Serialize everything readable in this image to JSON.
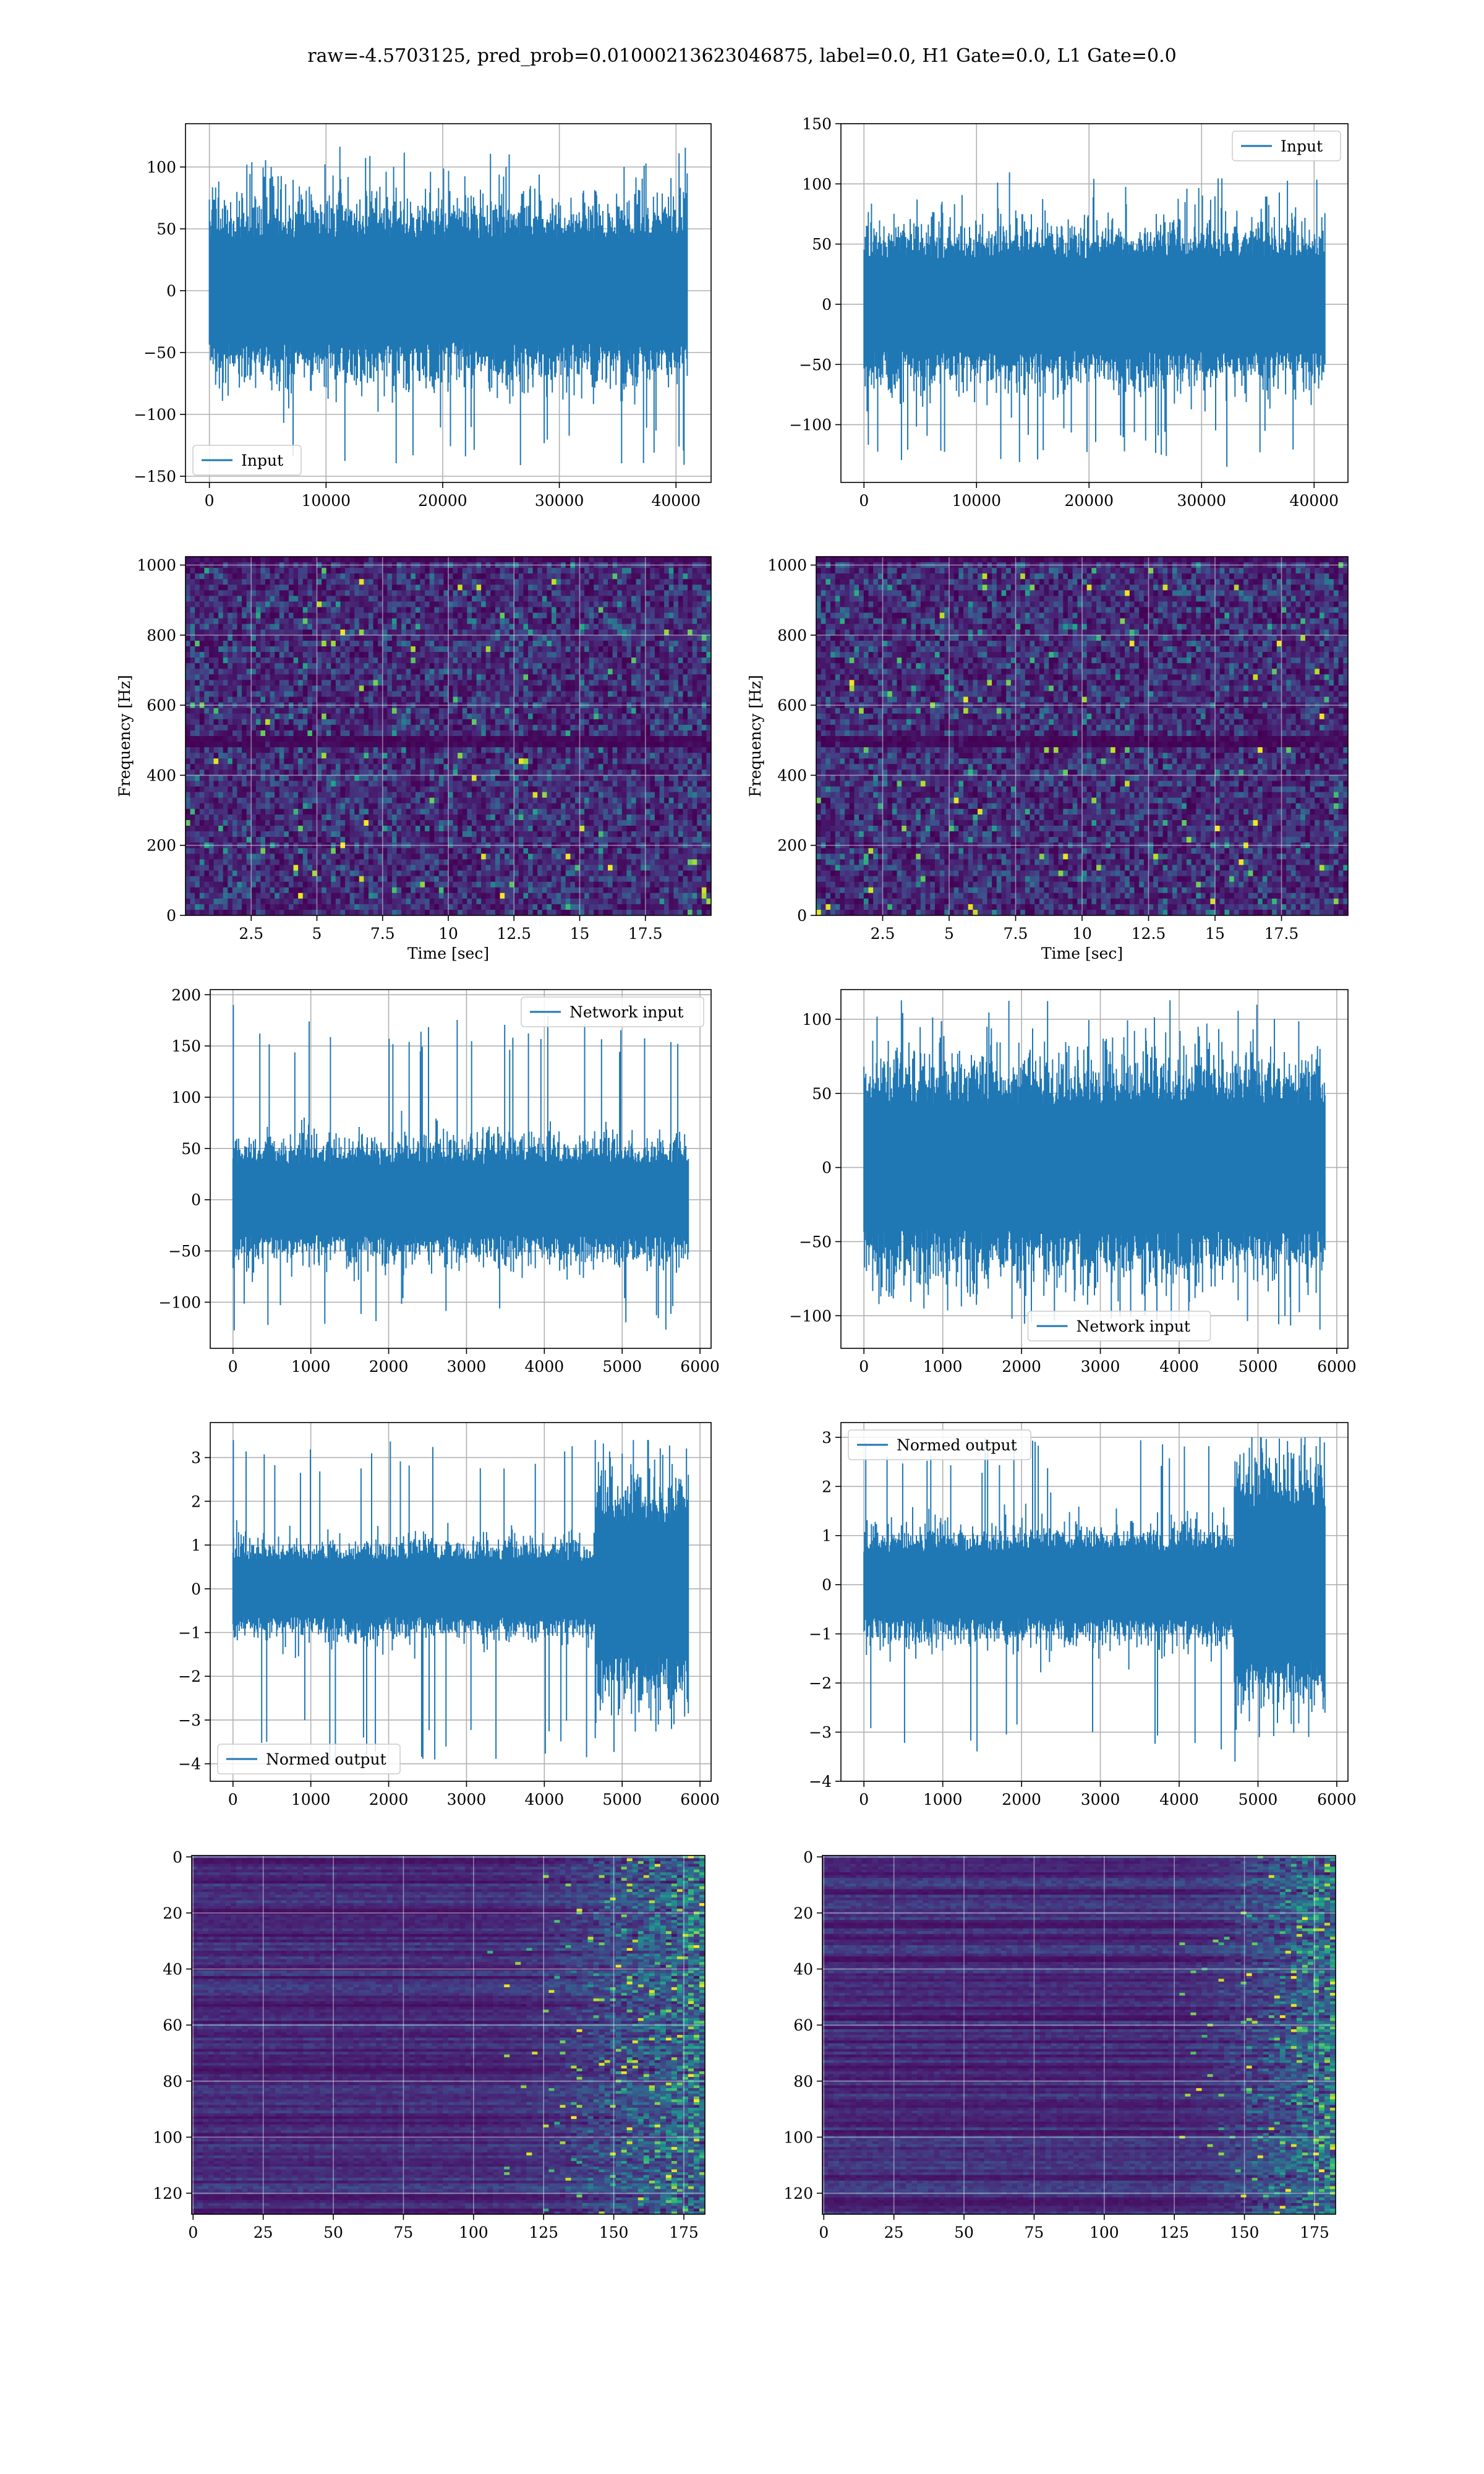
{
  "title": "raw=-4.5703125, pred_prob=0.01000213623046875, label=0.0, H1 Gate=0.0, L1 Gate=0.0",
  "colors": {
    "series": "#1f77b4",
    "grid": "#b0b0b0",
    "spine": "#000000",
    "cmap": [
      "#440154",
      "#482475",
      "#414487",
      "#355f8d",
      "#2a788e",
      "#21918c",
      "#22a884",
      "#44bf70",
      "#7ad151",
      "#bddf26",
      "#fde725"
    ]
  },
  "chart_data": [
    {
      "id": "input-h1",
      "type": "line",
      "series": [
        {
          "name": "Input",
          "kind": "noise",
          "n": 40960,
          "mean": 0,
          "std": 22,
          "peak_max": 118,
          "peak_min": -142
        }
      ],
      "xlim": [
        -2048,
        43008
      ],
      "ylim": [
        -155,
        135
      ],
      "xticks": [
        0,
        10000,
        20000,
        30000,
        40000
      ],
      "yticks": [
        -150,
        -100,
        -50,
        0,
        50,
        100
      ],
      "legend": "lower-left",
      "grid": true,
      "xlabel": "",
      "ylabel": ""
    },
    {
      "id": "input-l1",
      "type": "line",
      "series": [
        {
          "name": "Input",
          "kind": "noise",
          "n": 40960,
          "mean": 0,
          "std": 20,
          "peak_max": 110,
          "peak_min": -135
        }
      ],
      "xlim": [
        -2048,
        43008
      ],
      "ylim": [
        -148,
        150
      ],
      "xticks": [
        0,
        10000,
        20000,
        30000,
        40000
      ],
      "yticks": [
        -100,
        -50,
        0,
        50,
        100,
        150
      ],
      "legend": "upper-right",
      "grid": true,
      "xlabel": "",
      "ylabel": ""
    },
    {
      "id": "spec-h1",
      "type": "heatmap",
      "kind": "spectrogram",
      "xlim": [
        0,
        20
      ],
      "ylim": [
        0,
        1024
      ],
      "xticks": [
        2.5,
        5.0,
        7.5,
        10.0,
        12.5,
        15.0,
        17.5
      ],
      "yticks": [
        0,
        200,
        400,
        600,
        800,
        1000
      ],
      "xlabel": "Time [sec]",
      "ylabel": "Frequency [Hz]",
      "grid": true,
      "dark_band_hz": [
        480,
        510
      ],
      "dark_top_hz": 1000
    },
    {
      "id": "spec-l1",
      "type": "heatmap",
      "kind": "spectrogram",
      "xlim": [
        0,
        20
      ],
      "ylim": [
        0,
        1024
      ],
      "xticks": [
        2.5,
        5.0,
        7.5,
        10.0,
        12.5,
        15.0,
        17.5
      ],
      "yticks": [
        0,
        200,
        400,
        600,
        800,
        1000
      ],
      "xlabel": "Time [sec]",
      "ylabel": "Frequency [Hz]",
      "grid": true,
      "dark_band_hz": [
        480,
        510
      ],
      "dark_top_hz": 1000
    },
    {
      "id": "net-h1",
      "type": "line",
      "series": [
        {
          "name": "Network input",
          "kind": "noise",
          "n": 5850,
          "mean": 0,
          "std": 18,
          "peak_max": 190,
          "peak_min": -128,
          "spike_at": 5
        }
      ],
      "xlim": [
        -292,
        6142
      ],
      "ylim": [
        -145,
        205
      ],
      "xticks": [
        0,
        1000,
        2000,
        3000,
        4000,
        5000,
        6000
      ],
      "yticks": [
        -100,
        -50,
        0,
        50,
        100,
        150,
        200
      ],
      "legend": "upper-right",
      "grid": true,
      "xlabel": "",
      "ylabel": ""
    },
    {
      "id": "net-l1",
      "type": "line",
      "series": [
        {
          "name": "Network input",
          "kind": "noise",
          "n": 5850,
          "mean": 0,
          "std": 22,
          "peak_max": 113,
          "peak_min": -110
        }
      ],
      "xlim": [
        -292,
        6142
      ],
      "ylim": [
        -122,
        120
      ],
      "xticks": [
        0,
        1000,
        2000,
        3000,
        4000,
        5000,
        6000
      ],
      "yticks": [
        -100,
        -50,
        0,
        50,
        100
      ],
      "legend": "lower-center",
      "grid": true,
      "xlabel": "",
      "ylabel": ""
    },
    {
      "id": "norm-h1",
      "type": "line",
      "series": [
        {
          "name": "Normed output",
          "kind": "noise",
          "n": 5850,
          "mean": 0,
          "std": 0.33,
          "peak_max": 3.4,
          "peak_min": -4.0,
          "loud_from": 4650,
          "loud_std": 0.8,
          "spike_at": 5
        }
      ],
      "xlim": [
        -292,
        6142
      ],
      "ylim": [
        -4.4,
        3.8
      ],
      "xticks": [
        0,
        1000,
        2000,
        3000,
        4000,
        5000,
        6000
      ],
      "yticks": [
        -4,
        -3,
        -2,
        -1,
        0,
        1,
        2,
        3
      ],
      "legend": "lower-left",
      "grid": true,
      "xlabel": "",
      "ylabel": ""
    },
    {
      "id": "norm-l1",
      "type": "line",
      "series": [
        {
          "name": "Normed output",
          "kind": "noise",
          "n": 5850,
          "mean": 0,
          "std": 0.35,
          "peak_max": 3.0,
          "peak_min": -3.6,
          "loud_from": 4700,
          "loud_std": 0.8
        }
      ],
      "xlim": [
        -292,
        6142
      ],
      "ylim": [
        -4.0,
        3.3
      ],
      "xticks": [
        0,
        1000,
        2000,
        3000,
        4000,
        5000,
        6000
      ],
      "yticks": [
        -4,
        -3,
        -2,
        -1,
        0,
        1,
        2,
        3
      ],
      "legend": "upper-left",
      "grid": true,
      "xlabel": "",
      "ylabel": ""
    },
    {
      "id": "img-h1",
      "type": "heatmap",
      "kind": "feature-map",
      "cols": 183,
      "rows": 128,
      "xlim": [
        -0.5,
        182.5
      ],
      "ylim": [
        127.5,
        -0.5
      ],
      "xticks": [
        0,
        25,
        50,
        75,
        100,
        125,
        150,
        175
      ],
      "yticks": [
        0,
        20,
        40,
        60,
        80,
        100,
        120
      ],
      "grid": true,
      "active_from_col": 100
    },
    {
      "id": "img-l1",
      "type": "heatmap",
      "kind": "feature-map",
      "cols": 183,
      "rows": 128,
      "xlim": [
        -0.5,
        182.5
      ],
      "ylim": [
        127.5,
        -0.5
      ],
      "xticks": [
        0,
        25,
        50,
        75,
        100,
        125,
        150,
        175
      ],
      "yticks": [
        0,
        20,
        40,
        60,
        80,
        100,
        120
      ],
      "grid": true,
      "active_from_col": 120
    }
  ]
}
